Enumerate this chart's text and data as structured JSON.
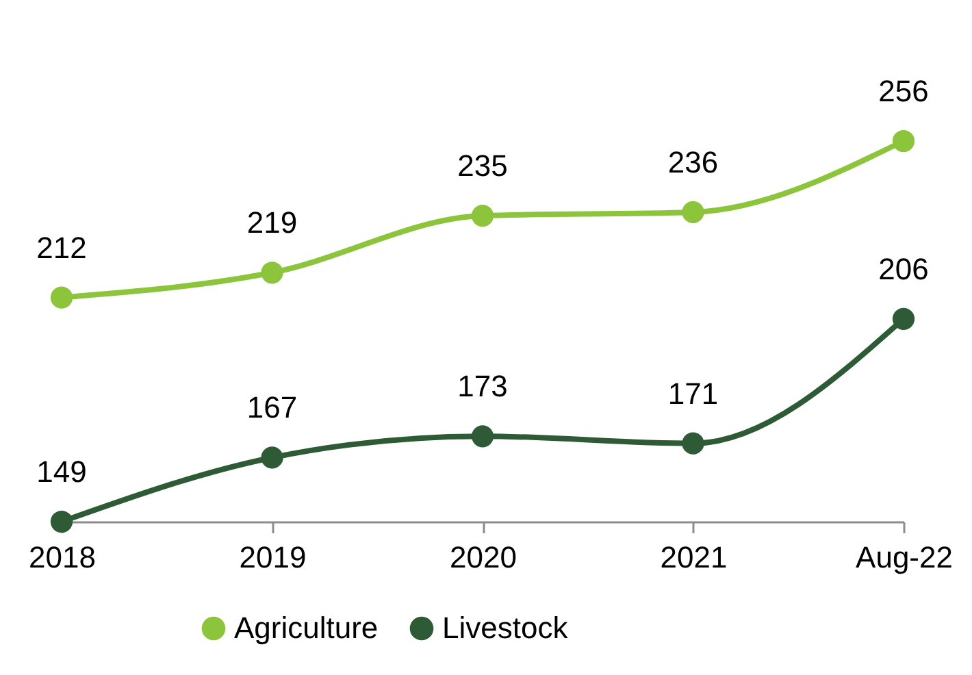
{
  "chart_data": {
    "type": "line",
    "categories": [
      "2018",
      "2019",
      "2020",
      "2021",
      "Aug-22"
    ],
    "series": [
      {
        "name": "Agriculture",
        "color": "#8cc43c",
        "values": [
          212,
          219,
          235,
          236,
          256
        ]
      },
      {
        "name": "Livestock",
        "color": "#2e5a35",
        "values": [
          149,
          167,
          173,
          171,
          206
        ]
      }
    ],
    "data_labels": true,
    "legend": "bottom",
    "marker": "circle",
    "line_style": "solid",
    "grid": false,
    "tick_labels": "x"
  }
}
